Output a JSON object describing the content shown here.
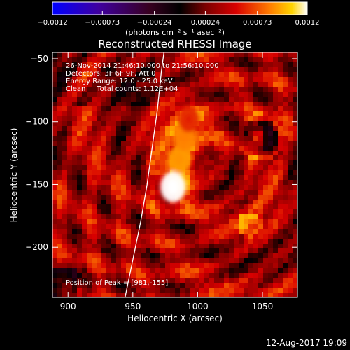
{
  "chart_data": {
    "type": "heatmap",
    "title": "Reconstructed RHESSI Image",
    "xlabel": "Heliocentric X (arcsec)",
    "ylabel": "Heliocentric Y (arcsec)",
    "xlim": [
      888,
      1077
    ],
    "ylim": [
      -240,
      -45
    ],
    "x_ticks": [
      900,
      950,
      1000,
      1050
    ],
    "y_ticks": [
      -50,
      -100,
      -150,
      -200
    ],
    "x_tick_labels": [
      "900",
      "950",
      "1000",
      "1050"
    ],
    "y_tick_labels": [
      "−50",
      "−100",
      "−150",
      "−200"
    ],
    "colorbar": {
      "range": [
        -0.0012,
        0.0012
      ],
      "ticks": [
        -0.0012,
        -0.00073,
        -0.00024,
        0.00024,
        0.00073,
        0.0012
      ],
      "tick_labels": [
        "−0.0012",
        "−0.00073",
        "−0.00024",
        "0.00024",
        "0.00073",
        "0.0012"
      ],
      "label": "(photons cm⁻² s⁻¹ asec⁻²)"
    },
    "annotations": [
      "26-Nov-2014 21:46:10.000 to 21:56:10.000",
      "Detectors: 3F 6F 9F, Att 0",
      "Energy Range: 12.0 - 25.0 keV",
      "Clean     Total counts: 1.12E+04"
    ],
    "peak_label": "Position of Peak = [981,-155]",
    "peak": [
      981,
      -155
    ],
    "sources": [
      {
        "x": 981,
        "y": -152,
        "value": 0.0012
      },
      {
        "x": 986,
        "y": -130,
        "value": 0.0009
      },
      {
        "x": 990,
        "y": -112,
        "value": 0.00085
      },
      {
        "x": 993,
        "y": -98,
        "value": 0.0006
      }
    ],
    "limb": [
      [
        944,
        -240
      ],
      [
        950,
        -210
      ],
      [
        956,
        -180
      ],
      [
        961,
        -150
      ],
      [
        965,
        -120
      ],
      [
        969,
        -90
      ],
      [
        972,
        -60
      ],
      [
        974,
        -45
      ]
    ]
  },
  "footer_timestamp": "12-Aug-2017 19:09"
}
